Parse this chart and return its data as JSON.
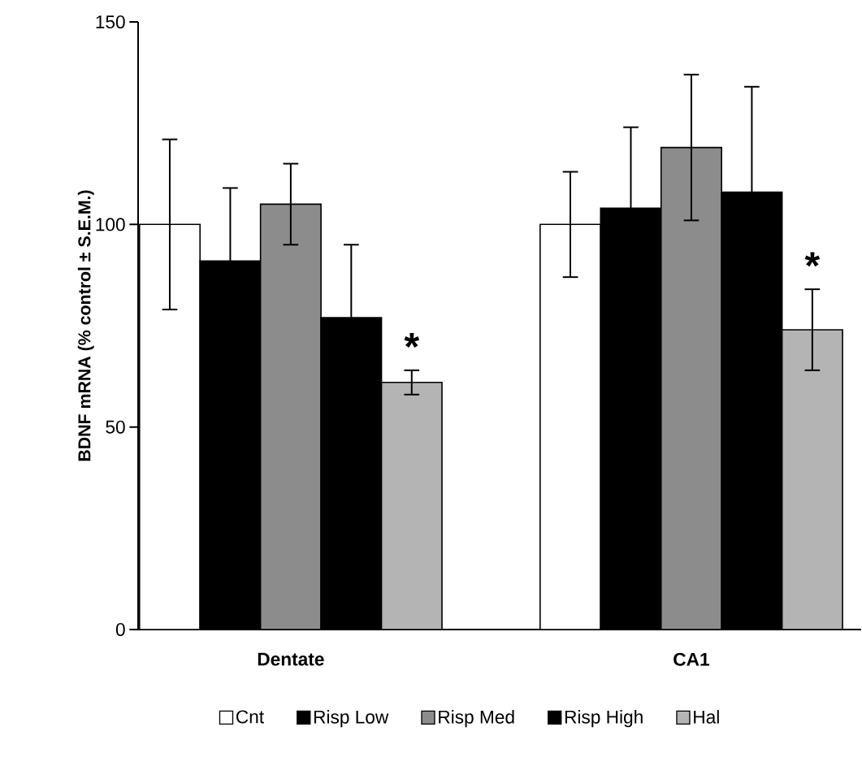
{
  "chart_data": {
    "type": "bar",
    "ylabel": "BDNF mRNA (% control ± S.E.M.)",
    "categories": [
      "Dentate",
      "CA1"
    ],
    "series": [
      {
        "name": "Cnt",
        "color": "#ffffff",
        "values": [
          100,
          100
        ],
        "errors": [
          21,
          13
        ]
      },
      {
        "name": "Risp Low",
        "color": "#000000",
        "values": [
          91,
          104
        ],
        "errors": [
          18,
          20
        ]
      },
      {
        "name": "Risp Med",
        "color": "#8c8c8c",
        "values": [
          105,
          119
        ],
        "errors": [
          10,
          18
        ]
      },
      {
        "name": "Risp High",
        "color": "#000000",
        "values": [
          77,
          108
        ],
        "errors": [
          18,
          26
        ]
      },
      {
        "name": "Hal",
        "color": "#b4b4b4",
        "values": [
          61,
          74
        ],
        "errors": [
          3,
          10
        ]
      }
    ],
    "ylim": [
      0,
      150
    ],
    "yticks": [
      0,
      50,
      100,
      150
    ],
    "legend": "bottom",
    "annotations": [
      "*",
      "*"
    ]
  }
}
